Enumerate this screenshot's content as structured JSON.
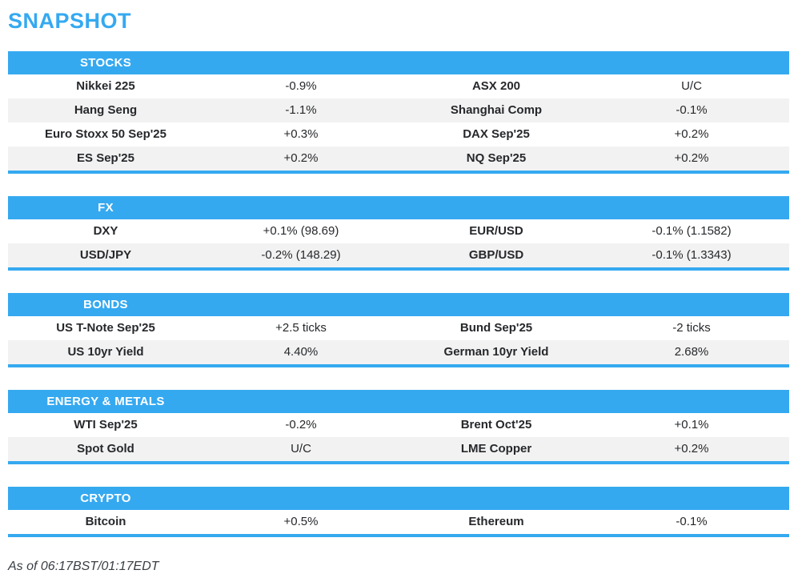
{
  "page": {
    "title": "SNAPSHOT",
    "footer": "As of 06:17BST/01:17EDT"
  },
  "colors": {
    "accent": "#35a9f0",
    "row_alt": "#f2f2f2",
    "text": "#26282b",
    "header_text": "#ffffff"
  },
  "sections": [
    {
      "id": "stocks",
      "label": "STOCKS",
      "rows": [
        {
          "left_label": "Nikkei 225",
          "left_value": "-0.9%",
          "right_label": "ASX 200",
          "right_value": "U/C"
        },
        {
          "left_label": "Hang Seng",
          "left_value": "-1.1%",
          "right_label": "Shanghai Comp",
          "right_value": "-0.1%"
        },
        {
          "left_label": "Euro Stoxx 50 Sep'25",
          "left_value": "+0.3%",
          "right_label": "DAX Sep'25",
          "right_value": "+0.2%"
        },
        {
          "left_label": "ES Sep'25",
          "left_value": "+0.2%",
          "right_label": "NQ Sep'25",
          "right_value": "+0.2%"
        }
      ]
    },
    {
      "id": "fx",
      "label": "FX",
      "rows": [
        {
          "left_label": "DXY",
          "left_value": "+0.1% (98.69)",
          "right_label": "EUR/USD",
          "right_value": "-0.1% (1.1582)"
        },
        {
          "left_label": "USD/JPY",
          "left_value": "-0.2% (148.29)",
          "right_label": "GBP/USD",
          "right_value": "-0.1% (1.3343)"
        }
      ]
    },
    {
      "id": "bonds",
      "label": "BONDS",
      "rows": [
        {
          "left_label": "US T-Note Sep'25",
          "left_value": "+2.5 ticks",
          "right_label": "Bund Sep'25",
          "right_value": "-2 ticks"
        },
        {
          "left_label": "US 10yr Yield",
          "left_value": "4.40%",
          "right_label": "German 10yr Yield",
          "right_value": "2.68%"
        }
      ]
    },
    {
      "id": "energy-metals",
      "label": "ENERGY & METALS",
      "rows": [
        {
          "left_label": "WTI Sep'25",
          "left_value": "-0.2%",
          "right_label": "Brent Oct'25",
          "right_value": "+0.1%"
        },
        {
          "left_label": "Spot Gold",
          "left_value": "U/C",
          "right_label": "LME Copper",
          "right_value": "+0.2%"
        }
      ]
    },
    {
      "id": "crypto",
      "label": "CRYPTO",
      "rows": [
        {
          "left_label": "Bitcoin",
          "left_value": "+0.5%",
          "right_label": "Ethereum",
          "right_value": "-0.1%"
        }
      ]
    }
  ]
}
